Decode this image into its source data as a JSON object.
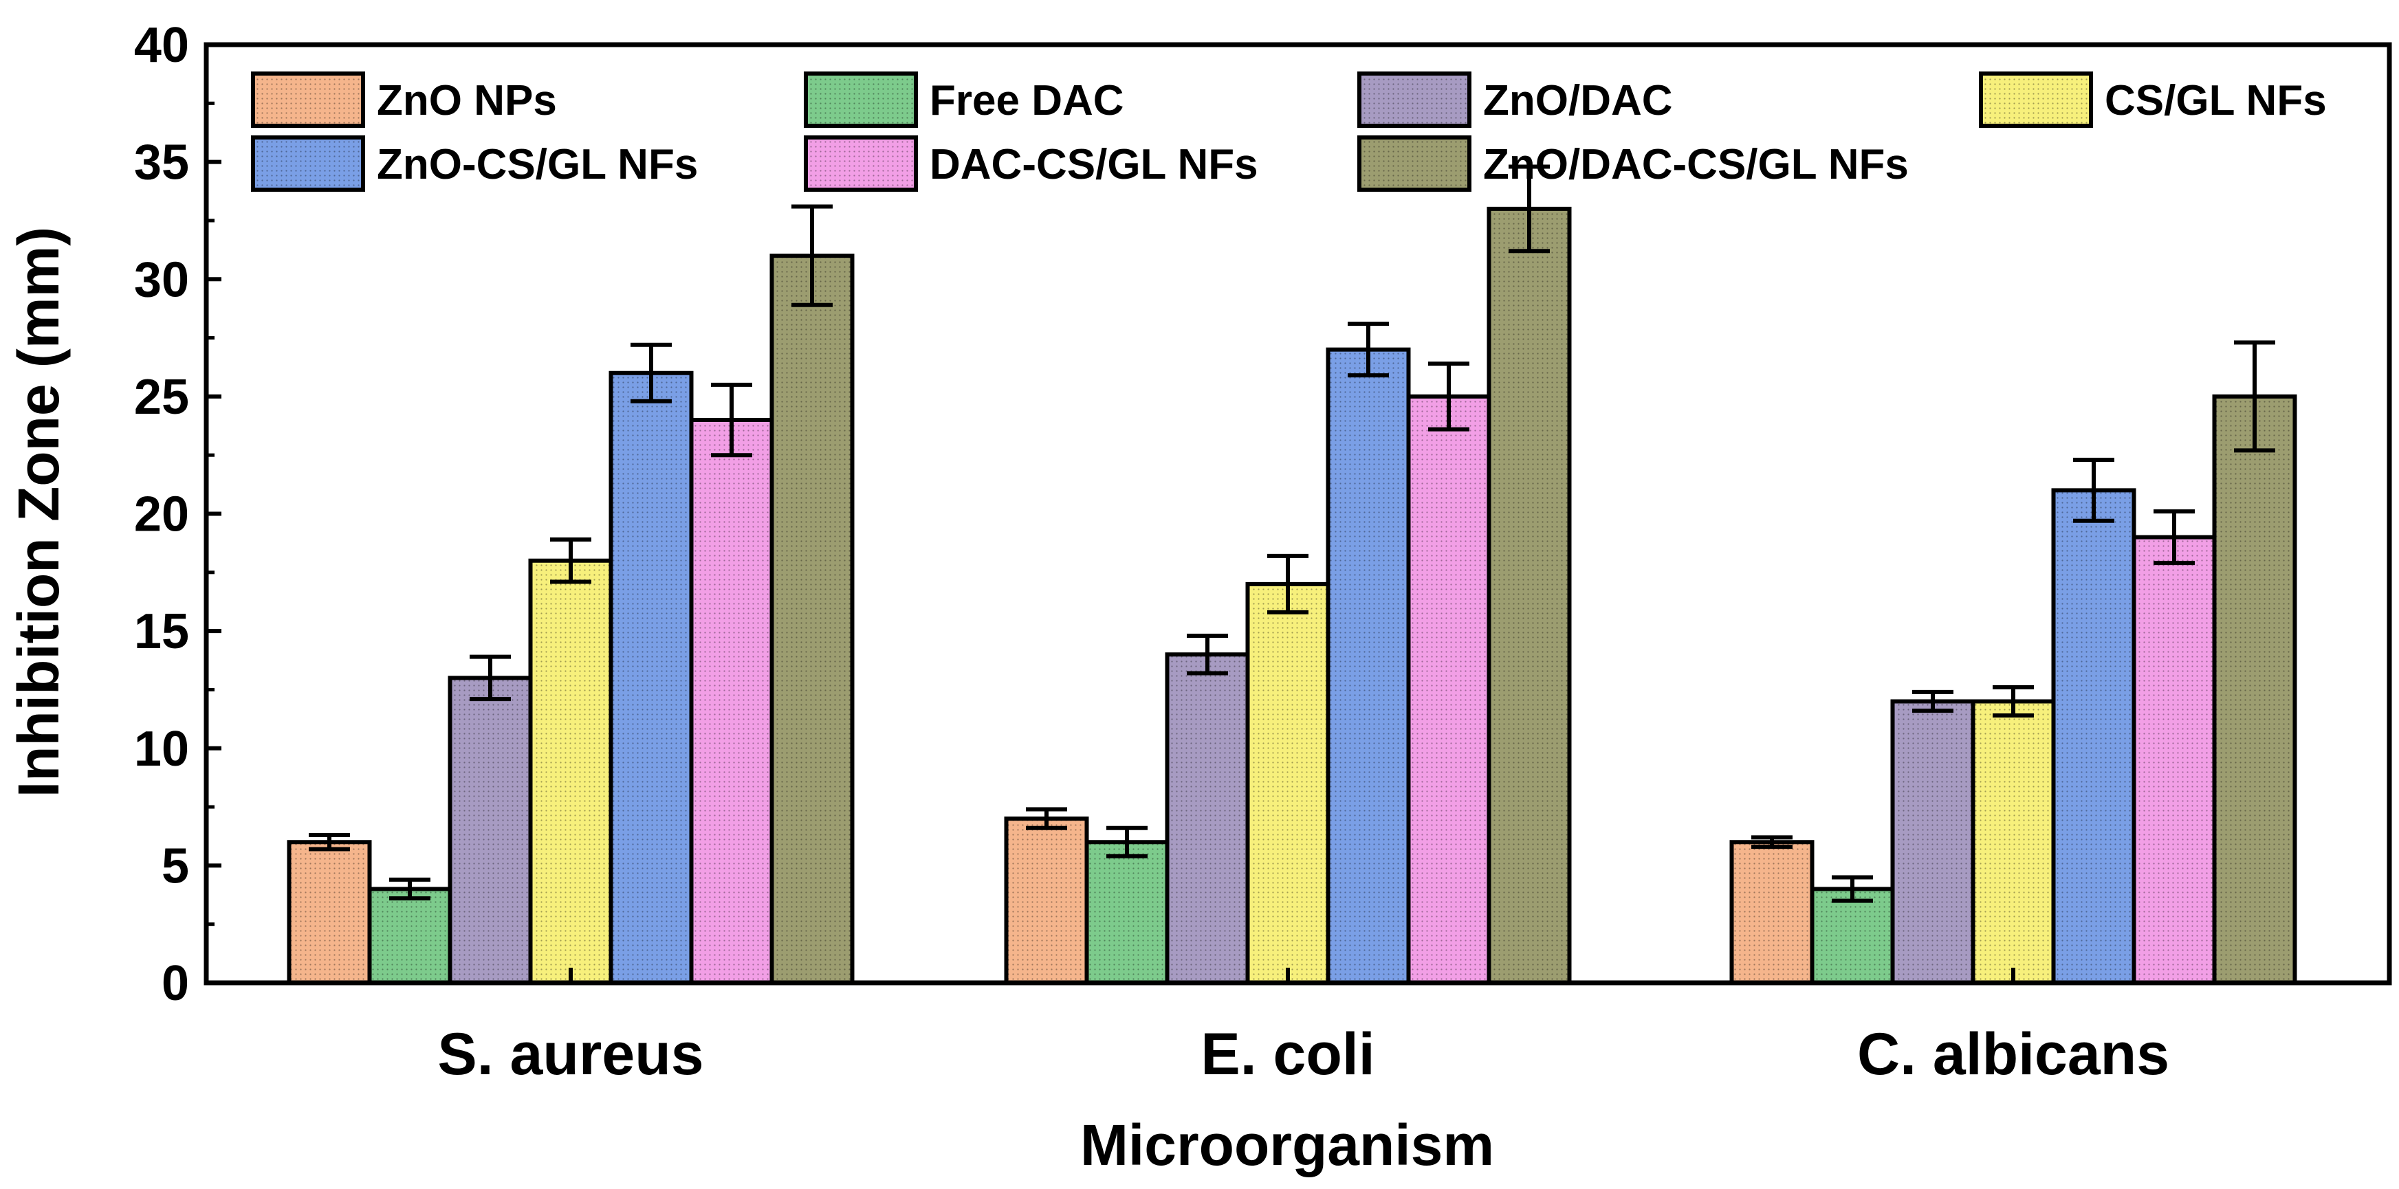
{
  "chart_data": {
    "type": "bar",
    "title": "",
    "xlabel": "Microorganism",
    "ylabel": "Inhibition Zone (mm)",
    "ylim": [
      0,
      40
    ],
    "yticks": [
      "0",
      "5",
      "10",
      "15",
      "20",
      "25",
      "30",
      "35",
      "40"
    ],
    "categories": [
      "S. aureus",
      "E. coli",
      "C. albicans"
    ],
    "legend_position": "top",
    "grid": false,
    "series": [
      {
        "name": "ZnO NPs",
        "color": "#F5B58C",
        "values": [
          6,
          7,
          6
        ],
        "errors": [
          0.3,
          0.4,
          0.2
        ]
      },
      {
        "name": "Free DAC",
        "color": "#7DCB8C",
        "values": [
          4,
          6,
          4
        ],
        "errors": [
          0.4,
          0.6,
          0.5
        ]
      },
      {
        "name": "ZnO/DAC",
        "color": "#A79BC2",
        "values": [
          13,
          14,
          12
        ],
        "errors": [
          0.9,
          0.8,
          0.4
        ]
      },
      {
        "name": "CS/GL NFs",
        "color": "#F7F07C",
        "values": [
          18,
          17,
          12
        ],
        "errors": [
          0.9,
          1.2,
          0.6
        ]
      },
      {
        "name": "ZnO-CS/GL NFs",
        "color": "#7A9FE6",
        "values": [
          26,
          27,
          21
        ],
        "errors": [
          1.2,
          1.1,
          1.3
        ]
      },
      {
        "name": "DAC-CS/GL NFs",
        "color": "#F29FE6",
        "values": [
          24,
          25,
          19
        ],
        "errors": [
          1.5,
          1.4,
          1.1
        ]
      },
      {
        "name": "ZnO/DAC-CS/GL NFs",
        "color": "#9C9D70",
        "values": [
          31,
          33,
          25
        ],
        "errors": [
          2.1,
          1.8,
          2.3
        ]
      }
    ]
  }
}
